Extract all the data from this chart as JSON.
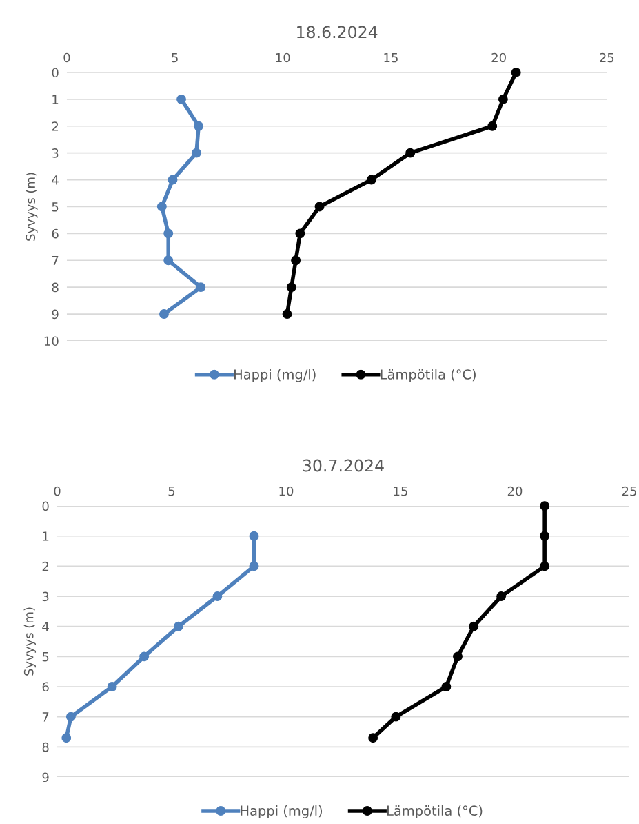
{
  "chart_data": [
    {
      "type": "line",
      "title": "18.6.2024",
      "ylabel": "Syvyys (m)",
      "xlim": [
        0,
        25
      ],
      "xticks": [
        0,
        5,
        10,
        15,
        20,
        25
      ],
      "ylim": [
        10,
        0
      ],
      "yticks": [
        0,
        1,
        2,
        3,
        4,
        5,
        6,
        7,
        8,
        9,
        10
      ],
      "grid": "y",
      "legend": "bottom",
      "marker": "circle",
      "line_style": "solid",
      "series": [
        {
          "name": "Happi (mg/l)",
          "color": "#4f81bd",
          "x": [
            5.3,
            6.1,
            6.0,
            4.9,
            4.4,
            4.7,
            4.7,
            6.2,
            4.5
          ],
          "values": [
            1,
            2,
            3,
            4,
            5,
            6,
            7,
            8,
            9
          ]
        },
        {
          "name": "Lämpötila (°C)",
          "color": "#000000",
          "x": [
            20.8,
            20.2,
            19.7,
            15.9,
            14.1,
            11.7,
            10.8,
            10.6,
            10.4,
            10.2
          ],
          "values": [
            0,
            1,
            2,
            3,
            4,
            5,
            6,
            7,
            8,
            9
          ]
        }
      ]
    },
    {
      "type": "line",
      "title": "30.7.2024",
      "ylabel": "Syvyys (m)",
      "xlim": [
        0,
        25
      ],
      "xticks": [
        0,
        5,
        10,
        15,
        20,
        25
      ],
      "ylim": [
        9,
        0
      ],
      "yticks": [
        0,
        1,
        2,
        3,
        4,
        5,
        6,
        7,
        8,
        9
      ],
      "grid": "y",
      "legend": "bottom",
      "marker": "circle",
      "line_style": "solid",
      "series": [
        {
          "name": "Happi (mg/l)",
          "color": "#4f81bd",
          "x": [
            8.6,
            8.6,
            7.0,
            5.3,
            3.8,
            2.4,
            0.6,
            0.4
          ],
          "values": [
            1,
            2,
            3,
            4,
            5,
            6,
            7,
            7.7
          ]
        },
        {
          "name": "Lämpötila (°C)",
          "color": "#000000",
          "x": [
            21.3,
            21.3,
            21.3,
            19.4,
            18.2,
            17.5,
            17.0,
            14.8,
            13.8
          ],
          "values": [
            0,
            1,
            2,
            3,
            4,
            5,
            6,
            7,
            7.7
          ]
        }
      ]
    }
  ]
}
